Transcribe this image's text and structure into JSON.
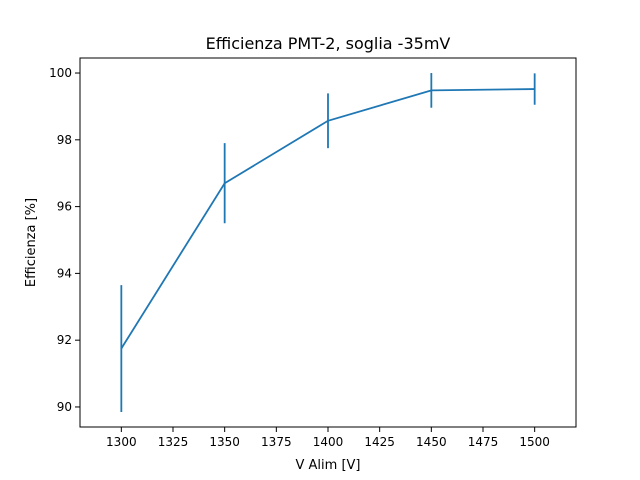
{
  "chart_data": {
    "type": "line",
    "title": "Efficienza PMT-2, soglia -35mV",
    "xlabel": "V Alim [V]",
    "ylabel": "Efficienza [%]",
    "x": [
      1300,
      1350,
      1400,
      1450,
      1500
    ],
    "y": [
      91.75,
      96.7,
      98.57,
      99.48,
      99.52
    ],
    "yerr": [
      1.9,
      1.2,
      0.82,
      0.52,
      0.47
    ],
    "xlim": [
      1280,
      1520
    ],
    "ylim": [
      89.4,
      100.45
    ],
    "xticks": [
      1300,
      1325,
      1350,
      1375,
      1400,
      1425,
      1450,
      1475,
      1500
    ],
    "yticks": [
      90,
      92,
      94,
      96,
      98,
      100
    ],
    "grid": false,
    "color": "#1f77b4"
  }
}
